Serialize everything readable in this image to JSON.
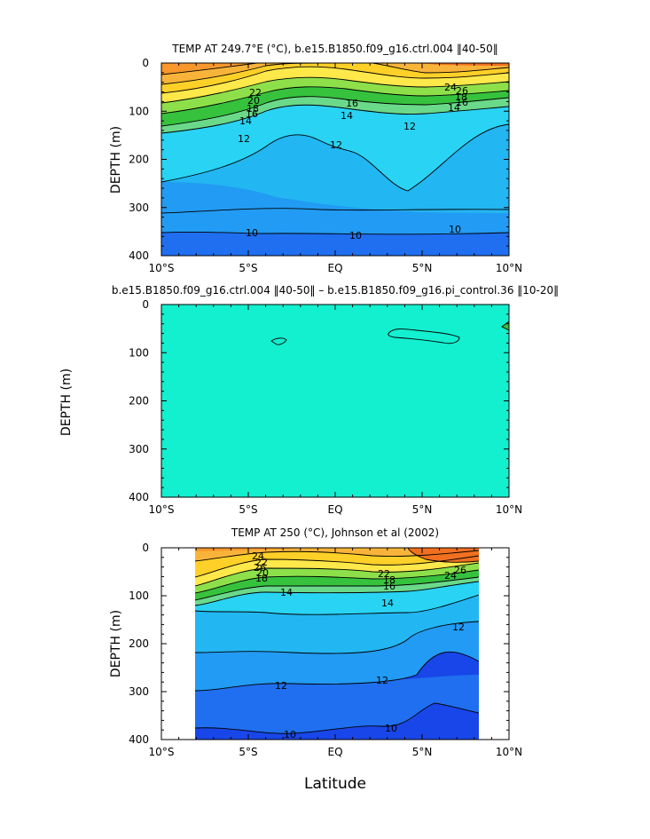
{
  "chart_data": [
    {
      "type": "contour",
      "title": "TEMP AT 249.7°E (°C), b.e15.B1850.f09_g16.ctrl.004 ‖40-50‖",
      "ylabel": "DEPTH (m)",
      "xlabel": "",
      "xlim": [
        -10,
        10
      ],
      "ylim": [
        400,
        0
      ],
      "x_ticks": [
        "10°S",
        "5°S",
        "EQ",
        "5°N",
        "10°N"
      ],
      "y_ticks": [
        "0",
        "100",
        "200",
        "300",
        "400"
      ],
      "contour_labels": [
        "22",
        "20",
        "18",
        "16",
        "14",
        "12",
        "12",
        "16",
        "14",
        "12",
        "24",
        "26",
        "18",
        "16",
        "14",
        "10",
        "10",
        "10"
      ],
      "data_extent": [
        -10,
        10
      ],
      "colors": [
        "#1846e8",
        "#1f6ff0",
        "#229bf4",
        "#22b6f2",
        "#29d3f4",
        "#6ad98a",
        "#36c23d",
        "#8ee04a",
        "#ffe84a",
        "#ffd028",
        "#f8b43a",
        "#f7972c",
        "#f07020"
      ]
    },
    {
      "type": "contour",
      "title": "b.e15.B1850.f09_g16.ctrl.004 ‖40-50‖ – b.e15.B1850.f09_g16.pi_control.36 ‖10-20‖",
      "ylabel": "DEPTH (m)",
      "xlabel": "",
      "xlim": [
        -10,
        10
      ],
      "ylim": [
        400,
        0
      ],
      "x_ticks": [
        "10°S",
        "5°S",
        "EQ",
        "5°N",
        "10°N"
      ],
      "y_ticks": [
        "0",
        "100",
        "200",
        "300",
        "400"
      ],
      "contour_labels": [],
      "fill": "#12f0d0"
    },
    {
      "type": "contour",
      "title": "TEMP AT 250 (°C), Johnson et al (2002)",
      "ylabel": "DEPTH (m)",
      "xlabel": "Latitude",
      "xlim": [
        -10,
        10
      ],
      "ylim": [
        400,
        0
      ],
      "x_ticks": [
        "10°S",
        "5°S",
        "EQ",
        "5°N",
        "10°N"
      ],
      "y_ticks": [
        "0",
        "100",
        "200",
        "300",
        "400"
      ],
      "contour_labels": [
        "24",
        "22",
        "26",
        "20",
        "18",
        "22",
        "24",
        "26",
        "18",
        "16",
        "14",
        "14",
        "12",
        "12",
        "12",
        "10",
        "10"
      ],
      "data_extent": [
        -8,
        8
      ],
      "colors": [
        "#1846e8",
        "#1f6ff0",
        "#229bf4",
        "#22b6f2",
        "#29d3f4",
        "#6ad98a",
        "#36c23d",
        "#8ee04a",
        "#ffe84a",
        "#ffd028",
        "#f8b43a",
        "#f7972c",
        "#f07020"
      ]
    }
  ]
}
